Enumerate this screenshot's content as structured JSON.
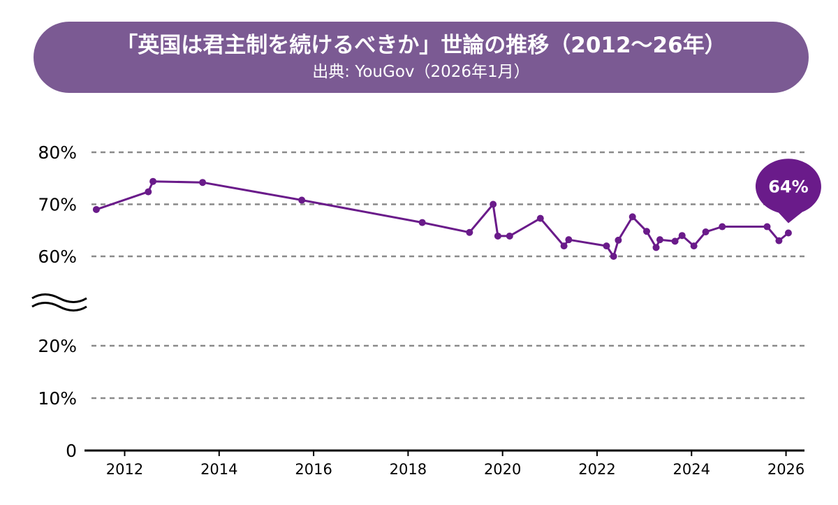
{
  "header": {
    "title": "「英国は君主制を続けるべきか」世論の推移（2012〜26年）",
    "source": "出典: YouGov（2026年1月）"
  },
  "colors": {
    "accent": "#6a1b8a",
    "banner": "#7b5a93",
    "grid": "#8a8a8a",
    "axis": "#000000"
  },
  "chart_data": {
    "type": "line",
    "title": "「英国は君主制を続けるべきか」世論の推移（2012〜26年）",
    "xlabel": "",
    "ylabel": "",
    "xlim": [
      2011.15,
      2026.45
    ],
    "ylim": [
      0,
      80
    ],
    "axis_break": [
      20,
      60
    ],
    "y_ticks": [
      {
        "value": 0,
        "label": "0"
      },
      {
        "value": 10,
        "label": "10%"
      },
      {
        "value": 20,
        "label": "20%"
      },
      {
        "value": 60,
        "label": "60%"
      },
      {
        "value": 70,
        "label": "70%"
      },
      {
        "value": 80,
        "label": "80%"
      }
    ],
    "x_ticks": [
      {
        "value": 2012,
        "label": "2012"
      },
      {
        "value": 2014,
        "label": "2014"
      },
      {
        "value": 2016,
        "label": "2016"
      },
      {
        "value": 2018,
        "label": "2018"
      },
      {
        "value": 2020,
        "label": "2020"
      },
      {
        "value": 2022,
        "label": "2022"
      },
      {
        "value": 2024,
        "label": "2024"
      },
      {
        "value": 2026,
        "label": "2026"
      }
    ],
    "grid": true,
    "series": [
      {
        "name": "君主制を続けるべき",
        "x": [
          2011.4,
          2012.5,
          2012.6,
          2013.65,
          2015.75,
          2018.3,
          2019.3,
          2019.8,
          2019.9,
          2020.15,
          2020.8,
          2021.3,
          2021.4,
          2022.2,
          2022.35,
          2022.45,
          2022.75,
          2023.05,
          2023.25,
          2023.33,
          2023.65,
          2023.8,
          2024.05,
          2024.3,
          2024.65,
          2025.6,
          2025.85,
          2026.05
        ],
        "values": [
          69,
          72.4,
          74.4,
          74.2,
          70.8,
          66.5,
          64.6,
          70,
          63.9,
          63.9,
          67.3,
          62,
          63.2,
          62,
          60,
          63.1,
          67.6,
          64.8,
          61.7,
          63.2,
          62.9,
          64,
          62,
          64.7,
          65.7,
          65.7,
          63,
          64.5
        ]
      }
    ],
    "annotations": [
      {
        "text": "64%",
        "x": 2026.05,
        "y": 64.5
      }
    ]
  }
}
